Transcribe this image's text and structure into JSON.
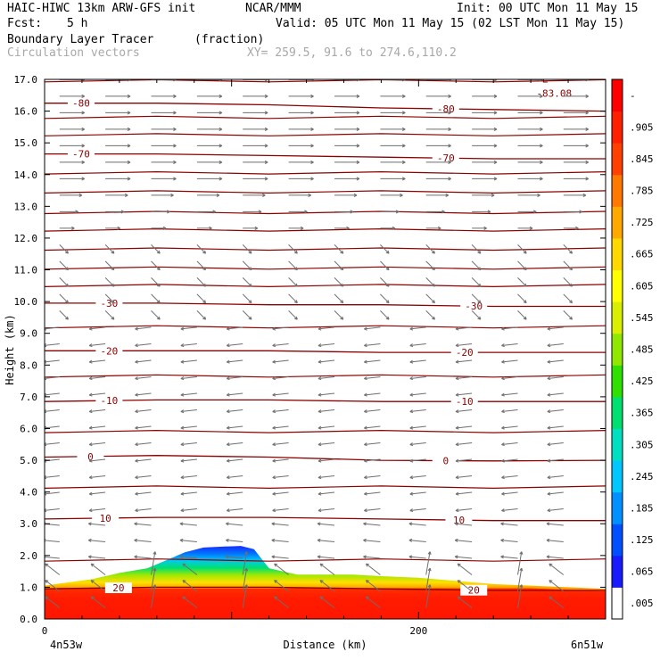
{
  "header": {
    "model": "HAIC-HIWC 13km ARW-GFS init",
    "org": "NCAR/MMM",
    "init": "Init: 00 UTC Mon 11 May 15",
    "fcst_label": "Fcst:",
    "fcst_value": "5 h",
    "valid": "Valid: 05 UTC Mon 11 May 15 (02 LST Mon 11 May 15)",
    "field_name": "Boundary Layer Tracer",
    "field_units": "(fraction)",
    "vector_label": "Circulation vectors",
    "xy_info": "XY= 259.5, 91.6 to 274.6,110.2"
  },
  "chart_data": {
    "type": "heatmap",
    "ylabel": "Height (km)",
    "xlabel": "Distance (km)",
    "ylim": [
      0,
      17
    ],
    "xlim": [
      0,
      300
    ],
    "yticks": [
      "0.0",
      "1.0",
      "2.0",
      "3.0",
      "4.0",
      "5.0",
      "6.0",
      "7.0",
      "8.0",
      "9.0",
      "10.0",
      "11.0",
      "12.0",
      "13.0",
      "14.0",
      "15.0",
      "16.0",
      "17.0"
    ],
    "xticks": [
      {
        "value": 0,
        "label": "0"
      },
      {
        "value": 200,
        "label": "200"
      }
    ],
    "x_endpoints": {
      "left": "4n53w",
      "right": "6n51w"
    },
    "colorbar": {
      "labels": [
        ".005",
        ".065",
        ".125",
        ".185",
        ".245",
        ".305",
        ".365",
        ".425",
        ".485",
        ".545",
        ".605",
        ".665",
        ".725",
        ".785",
        ".845",
        ".905"
      ],
      "top_label": "-",
      "colors": [
        "#ffffff",
        "#1a1aff",
        "#0050ff",
        "#0090ff",
        "#00c8ff",
        "#00e0c0",
        "#00e070",
        "#30e000",
        "#90e800",
        "#d8f000",
        "#ffff00",
        "#ffd800",
        "#ffa800",
        "#ff7800",
        "#ff4000",
        "#ff2000",
        "#ff0000"
      ]
    },
    "tracer_layer": {
      "x_km": [
        0,
        12,
        25,
        40,
        55,
        65,
        75,
        85,
        95,
        105,
        112,
        120,
        135,
        150,
        165,
        180,
        200,
        220,
        240,
        260,
        280,
        300
      ],
      "top_km": [
        1.05,
        1.15,
        1.25,
        1.45,
        1.6,
        1.85,
        2.1,
        2.25,
        2.28,
        2.3,
        2.2,
        1.6,
        1.4,
        1.4,
        1.4,
        1.35,
        1.3,
        1.2,
        1.1,
        1.05,
        1.0,
        0.95
      ]
    },
    "temperature_contours": [
      {
        "label": "-80",
        "label_x": [
          20,
          215
        ],
        "y_km": [
          16.25,
          16.25,
          16.2,
          16.1,
          16.05,
          16.0
        ]
      },
      {
        "label": "-70",
        "label_x": [
          20,
          215
        ],
        "y_km": [
          14.65,
          14.65,
          14.6,
          14.55,
          14.5,
          14.5
        ]
      },
      {
        "label": "-30",
        "label_x": [
          35,
          230
        ],
        "y_km": [
          9.95,
          9.95,
          9.9,
          9.9,
          9.85,
          9.85
        ]
      },
      {
        "label": "-20",
        "label_x": [
          35,
          225
        ],
        "y_km": [
          8.45,
          8.45,
          8.45,
          8.4,
          8.4,
          8.4
        ]
      },
      {
        "label": "-10",
        "label_x": [
          35,
          225
        ],
        "y_km": [
          6.85,
          6.9,
          6.9,
          6.85,
          6.85,
          6.85
        ]
      },
      {
        "label": "0",
        "label_x": [
          25,
          215
        ],
        "y_km": [
          5.1,
          5.15,
          5.1,
          5.0,
          4.98,
          5.0
        ]
      },
      {
        "label": "10",
        "label_x": [
          33,
          222
        ],
        "y_km": [
          3.15,
          3.2,
          3.2,
          3.15,
          3.1,
          3.1
        ]
      },
      {
        "label": "20",
        "label_x": [
          40,
          230
        ],
        "y_km": [
          0.95,
          1.0,
          1.0,
          0.95,
          0.9,
          0.9
        ]
      }
    ],
    "contour_x_km": [
      0,
      60,
      120,
      180,
      240,
      300
    ],
    "unlabeled_contour_km": [
      16.95,
      15.8,
      15.25,
      14.05,
      13.45,
      12.8,
      12.25,
      11.65,
      11.05,
      10.5,
      9.2,
      7.65,
      5.9,
      4.15,
      1.85
    ],
    "max_label": {
      "text": "-83.08",
      "marker": "L"
    },
    "colors": {
      "contour": "#8b0000",
      "vector": "#6e6e6e",
      "axis": "#000000"
    }
  }
}
